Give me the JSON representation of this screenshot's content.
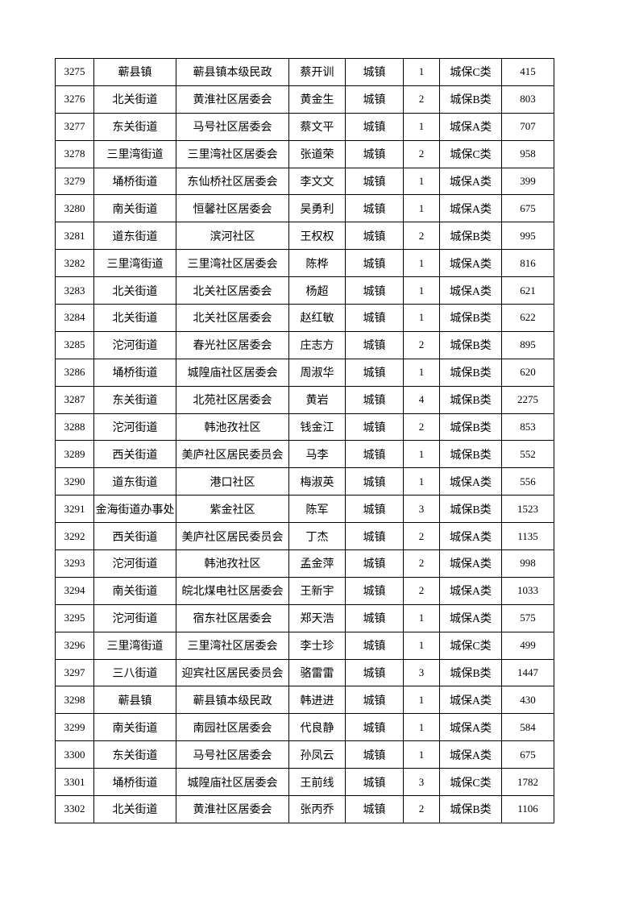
{
  "table": {
    "rows": [
      [
        "3275",
        "蕲县镇",
        "蕲县镇本级民政",
        "蔡开训",
        "城镇",
        "1",
        "城保C类",
        "415"
      ],
      [
        "3276",
        "北关街道",
        "黄淮社区居委会",
        "黄金生",
        "城镇",
        "2",
        "城保B类",
        "803"
      ],
      [
        "3277",
        "东关街道",
        "马号社区居委会",
        "蔡文平",
        "城镇",
        "1",
        "城保A类",
        "707"
      ],
      [
        "3278",
        "三里湾街道",
        "三里湾社区居委会",
        "张道荣",
        "城镇",
        "2",
        "城保C类",
        "958"
      ],
      [
        "3279",
        "埇桥街道",
        "东仙桥社区居委会",
        "李文文",
        "城镇",
        "1",
        "城保A类",
        "399"
      ],
      [
        "3280",
        "南关街道",
        "恒馨社区居委会",
        "吴勇利",
        "城镇",
        "1",
        "城保A类",
        "675"
      ],
      [
        "3281",
        "道东街道",
        "滨河社区",
        "王权权",
        "城镇",
        "2",
        "城保B类",
        "995"
      ],
      [
        "3282",
        "三里湾街道",
        "三里湾社区居委会",
        "陈桦",
        "城镇",
        "1",
        "城保A类",
        "816"
      ],
      [
        "3283",
        "北关街道",
        "北关社区居委会",
        "杨超",
        "城镇",
        "1",
        "城保A类",
        "621"
      ],
      [
        "3284",
        "北关街道",
        "北关社区居委会",
        "赵红敏",
        "城镇",
        "1",
        "城保B类",
        "622"
      ],
      [
        "3285",
        "沱河街道",
        "春光社区居委会",
        "庄志方",
        "城镇",
        "2",
        "城保B类",
        "895"
      ],
      [
        "3286",
        "埇桥街道",
        "城隍庙社区居委会",
        "周淑华",
        "城镇",
        "1",
        "城保B类",
        "620"
      ],
      [
        "3287",
        "东关街道",
        "北苑社区居委会",
        "黄岩",
        "城镇",
        "4",
        "城保B类",
        "2275"
      ],
      [
        "3288",
        "沱河街道",
        "韩池孜社区",
        "钱金江",
        "城镇",
        "2",
        "城保B类",
        "853"
      ],
      [
        "3289",
        "西关街道",
        "美庐社区居民委员会",
        "马李",
        "城镇",
        "1",
        "城保B类",
        "552"
      ],
      [
        "3290",
        "道东街道",
        "港口社区",
        "梅淑英",
        "城镇",
        "1",
        "城保A类",
        "556"
      ],
      [
        "3291",
        "金海街道办事处",
        "紫金社区",
        "陈军",
        "城镇",
        "3",
        "城保B类",
        "1523"
      ],
      [
        "3292",
        "西关街道",
        "美庐社区居民委员会",
        "丁杰",
        "城镇",
        "2",
        "城保A类",
        "1135"
      ],
      [
        "3293",
        "沱河街道",
        "韩池孜社区",
        "孟金萍",
        "城镇",
        "2",
        "城保A类",
        "998"
      ],
      [
        "3294",
        "南关街道",
        "皖北煤电社区居委会",
        "王新宇",
        "城镇",
        "2",
        "城保A类",
        "1033"
      ],
      [
        "3295",
        "沱河街道",
        "宿东社区居委会",
        "郑天浩",
        "城镇",
        "1",
        "城保A类",
        "575"
      ],
      [
        "3296",
        "三里湾街道",
        "三里湾社区居委会",
        "李士珍",
        "城镇",
        "1",
        "城保C类",
        "499"
      ],
      [
        "3297",
        "三八街道",
        "迎宾社区居民委员会",
        "骆雷雷",
        "城镇",
        "3",
        "城保B类",
        "1447"
      ],
      [
        "3298",
        "蕲县镇",
        "蕲县镇本级民政",
        "韩进进",
        "城镇",
        "1",
        "城保A类",
        "430"
      ],
      [
        "3299",
        "南关街道",
        "南园社区居委会",
        "代良静",
        "城镇",
        "1",
        "城保A类",
        "584"
      ],
      [
        "3300",
        "东关街道",
        "马号社区居委会",
        "孙凤云",
        "城镇",
        "1",
        "城保A类",
        "675"
      ],
      [
        "3301",
        "埇桥街道",
        "城隍庙社区居委会",
        "王前线",
        "城镇",
        "3",
        "城保C类",
        "1782"
      ],
      [
        "3302",
        "北关街道",
        "黄淮社区居委会",
        "张丙乔",
        "城镇",
        "2",
        "城保B类",
        "1106"
      ]
    ]
  }
}
